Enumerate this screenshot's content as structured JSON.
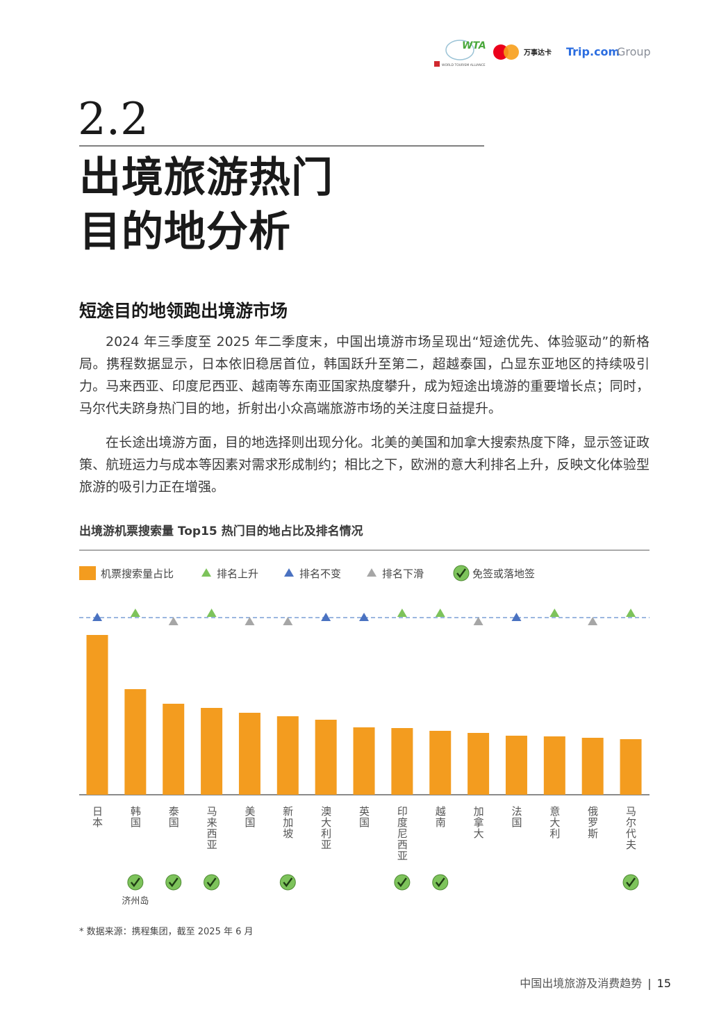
{
  "header": {
    "wta": "WTA",
    "wta_name": "WORLD TOURISM ALLIANCE",
    "mastercard": "万事达卡",
    "trip": "Trip.com",
    "group": "Group"
  },
  "section": {
    "number": "2.2",
    "title_lines": [
      "出境旅游热门",
      "目的地分析"
    ]
  },
  "subtitle": "短途目的地领跑出境游市场",
  "paragraphs": [
    "2024 年三季度至 2025 年二季度末，中国出境游市场呈现出“短途优先、体验驱动”的新格局。携程数据显示，日本依旧稳居首位，韩国跃升至第二，超越泰国，凸显东亚地区的持续吸引力。马来西亚、印度尼西亚、越南等东南亚国家热度攀升，成为短途出境游的重要增长点；同时，马尔代夫跻身热门目的地，折射出小众高端旅游市场的关注度日益提升。",
    "在长途出境游方面，目的地选择则出现分化。北美的美国和加拿大搜索热度下降，显示签证政策、航班运力与成本等因素对需求形成制约；相比之下，欧洲的意大利排名上升，反映文化体验型旅游的吸引力正在增强。"
  ],
  "chart_data": {
    "type": "bar",
    "title": "出境游机票搜索量 Top15 热门目的地占比及排名情况",
    "categories": [
      "日本",
      "韩国",
      "泰国",
      "马来西亚",
      "美国",
      "新加坡",
      "澳大利亚",
      "英国",
      "印度尼西亚",
      "越南",
      "加拿大",
      "法国",
      "意大利",
      "俄罗斯",
      "马尔代夫"
    ],
    "values": [
      230,
      152,
      131,
      125,
      118,
      113,
      108,
      97,
      96,
      92,
      89,
      85,
      84,
      82,
      80
    ],
    "color": "#f39c1f",
    "ylim": [
      0,
      255
    ],
    "legend": [
      {
        "name": "机票搜索量占比",
        "kind": "bar"
      },
      {
        "name": "排名上升",
        "kind": "up",
        "color": "#7dc35b"
      },
      {
        "name": "排名不变",
        "kind": "same",
        "color": "#4a72c1"
      },
      {
        "name": "排名下滑",
        "kind": "down",
        "color": "#a6a6a6"
      },
      {
        "name": "免签或落地签",
        "kind": "visa",
        "color": "#7dc35b"
      }
    ],
    "rank_change": [
      "same",
      "up",
      "down",
      "up",
      "down",
      "down",
      "same",
      "same",
      "up",
      "up",
      "down",
      "same",
      "up",
      "down",
      "up"
    ],
    "visa_free": [
      false,
      true,
      true,
      true,
      false,
      true,
      false,
      false,
      true,
      true,
      false,
      false,
      false,
      false,
      true
    ],
    "visa_notes": [
      null,
      "济州岛",
      null,
      null,
      null,
      null,
      null,
      null,
      null,
      null,
      null,
      null,
      null,
      null,
      null
    ],
    "footnote": "* 数据来源：携程集团，截至 2025 年 6 月"
  },
  "footer": {
    "title": "中国出境旅游及消费趋势",
    "page": 15
  }
}
